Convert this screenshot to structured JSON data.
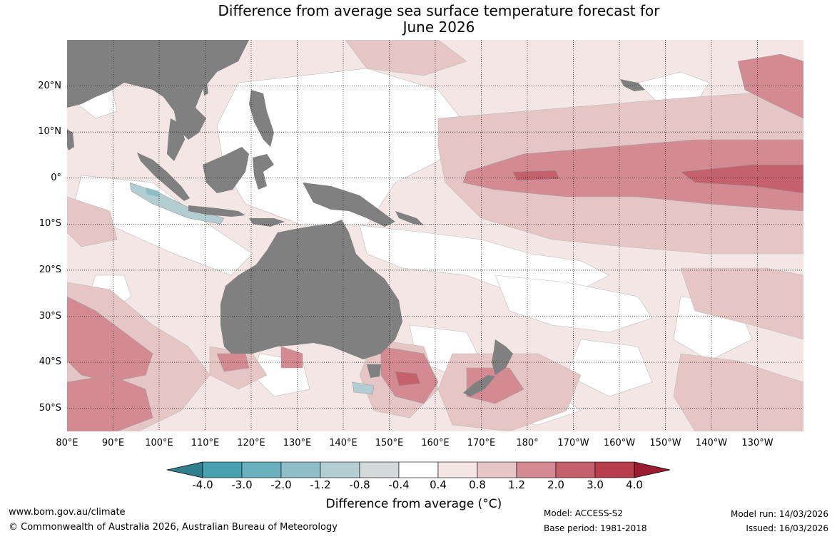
{
  "title": {
    "line1": "Difference from average sea surface temperature forecast for",
    "line2": "June 2026"
  },
  "map": {
    "lat_labels": [
      "20°N",
      "10°N",
      "0°",
      "10°S",
      "20°S",
      "30°S",
      "40°S",
      "50°S"
    ],
    "lon_labels": [
      "80°E",
      "90°E",
      "100°E",
      "110°E",
      "120°E",
      "130°E",
      "140°E",
      "150°E",
      "160°E",
      "170°E",
      "180°",
      "170°W",
      "160°W",
      "150°W",
      "140°W",
      "130°W"
    ],
    "lat_values": [
      20,
      10,
      0,
      -10,
      -20,
      -30,
      -40,
      -50
    ],
    "lon_values": [
      80,
      90,
      100,
      110,
      120,
      130,
      140,
      150,
      160,
      170,
      180,
      190,
      200,
      210,
      220,
      230
    ],
    "lon_range": [
      80,
      240
    ],
    "lat_range": [
      -55,
      30
    ]
  },
  "colorbar": {
    "labels": [
      "-4.0",
      "-3.0",
      "-2.0",
      "-1.2",
      "-0.8",
      "-0.4",
      "0.4",
      "0.8",
      "1.2",
      "2.0",
      "3.0",
      "4.0"
    ],
    "colors": [
      "#2f7f8f",
      "#47a1b1",
      "#6ab0bd",
      "#8fbec7",
      "#b3ced2",
      "#d3d8d8",
      "#ffffff",
      "#f3e6e5",
      "#e6c6c4",
      "#d48a92",
      "#c4616d",
      "#b73e4c",
      "#9b1b30"
    ],
    "title": "Difference from average (°C)"
  },
  "footer": {
    "url": "www.bom.gov.au/climate",
    "copyright": "© Commonwealth of Australia 2026, Australian Bureau of Meteorology",
    "model": "Model: ACCESS-S2",
    "base_period": "Base period: 1981-2018",
    "model_run": "Model run: 14/03/2026",
    "issued": "Issued: 16/03/2026"
  },
  "land_color": "#808080"
}
